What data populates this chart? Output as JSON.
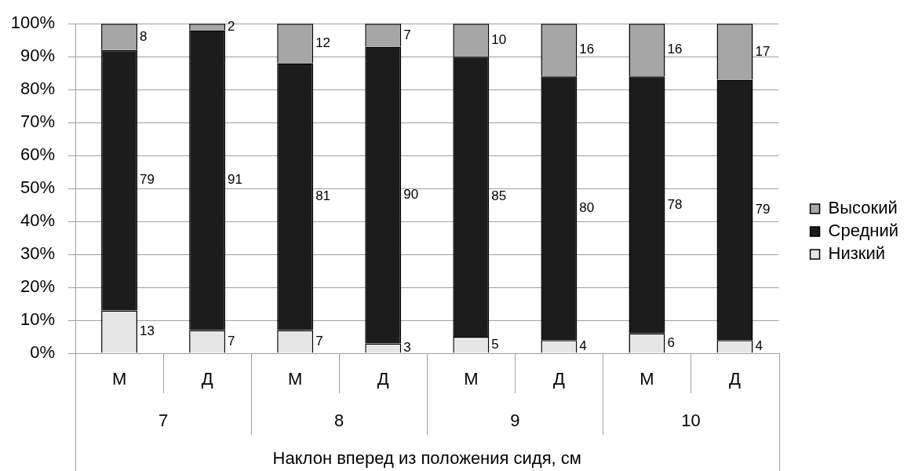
{
  "chart_data": {
    "type": "bar",
    "xlabel": "Наклон вперед из положения сидя, см",
    "categories": [
      "М",
      "Д",
      "М",
      "Д",
      "М",
      "Д",
      "М",
      "Д"
    ],
    "annotations": [
      "7",
      "8",
      "9",
      "10"
    ],
    "series": [
      {
        "name": "Низкий",
        "color": "#e6e6e6",
        "values": [
          13,
          7,
          7,
          3,
          5,
          4,
          6,
          4
        ]
      },
      {
        "name": "Средний",
        "color": "#1c1c1c",
        "values": [
          79,
          91,
          81,
          90,
          85,
          80,
          78,
          79
        ]
      },
      {
        "name": "Высокий",
        "color": "#a6a6a6",
        "values": [
          8,
          2,
          12,
          7,
          10,
          16,
          16,
          17
        ]
      }
    ],
    "stacked": true,
    "ylim": [
      0,
      100
    ],
    "yticks": [
      {
        "value": 0,
        "label": "0%"
      },
      {
        "value": 10,
        "label": "10%"
      },
      {
        "value": 20,
        "label": "20%"
      },
      {
        "value": 30,
        "label": "30%"
      },
      {
        "value": 40,
        "label": "40%"
      },
      {
        "value": 50,
        "label": "50%"
      },
      {
        "value": 60,
        "label": "60%"
      },
      {
        "value": 70,
        "label": "70%"
      },
      {
        "value": 80,
        "label": "80%"
      },
      {
        "value": 90,
        "label": "90%"
      },
      {
        "value": 100,
        "label": "100%"
      }
    ],
    "grid": "y",
    "legend": "right",
    "data_labels": true
  }
}
